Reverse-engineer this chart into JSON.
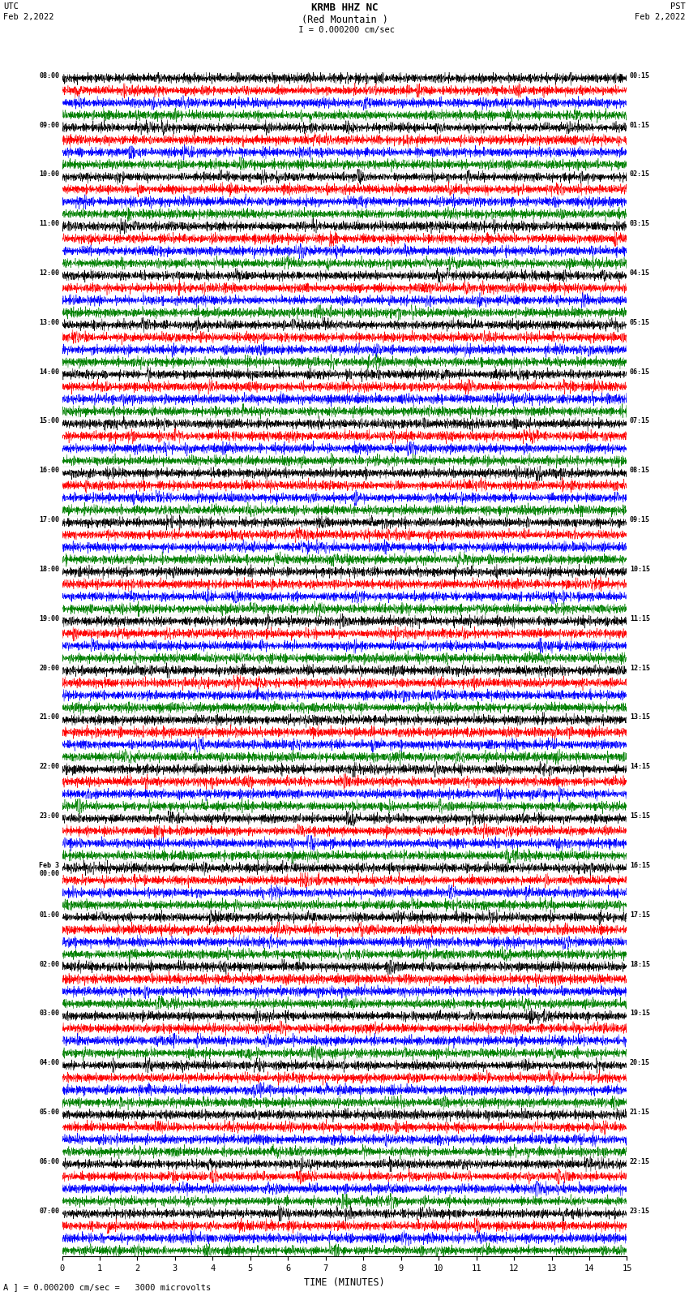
{
  "title_line1": "KRMB HHZ NC",
  "title_line2": "(Red Mountain )",
  "scale_label": " I = 0.000200 cm/sec",
  "bottom_label": "A ] = 0.000200 cm/sec =   3000 microvolts",
  "xlabel": "TIME (MINUTES)",
  "utc_label": "UTC",
  "utc_date": "Feb 2,2022",
  "pst_label": "PST",
  "pst_date": "Feb 2,2022",
  "left_times": [
    "08:00",
    "09:00",
    "10:00",
    "11:00",
    "12:00",
    "13:00",
    "14:00",
    "15:00",
    "16:00",
    "17:00",
    "18:00",
    "19:00",
    "20:00",
    "21:00",
    "22:00",
    "23:00",
    "Feb 3\n00:00",
    "01:00",
    "02:00",
    "03:00",
    "04:00",
    "05:00",
    "06:00",
    "07:00"
  ],
  "right_times": [
    "00:15",
    "01:15",
    "02:15",
    "03:15",
    "04:15",
    "05:15",
    "06:15",
    "07:15",
    "08:15",
    "09:15",
    "10:15",
    "11:15",
    "12:15",
    "13:15",
    "14:15",
    "15:15",
    "16:15",
    "17:15",
    "18:15",
    "19:15",
    "20:15",
    "21:15",
    "22:15",
    "23:15"
  ],
  "colors": [
    "black",
    "red",
    "blue",
    "green"
  ],
  "n_rows": 24,
  "traces_per_row": 4,
  "n_points": 3000,
  "bg_color": "white",
  "plot_bg": "white",
  "amplitude_scale": 0.42,
  "seed": 42
}
